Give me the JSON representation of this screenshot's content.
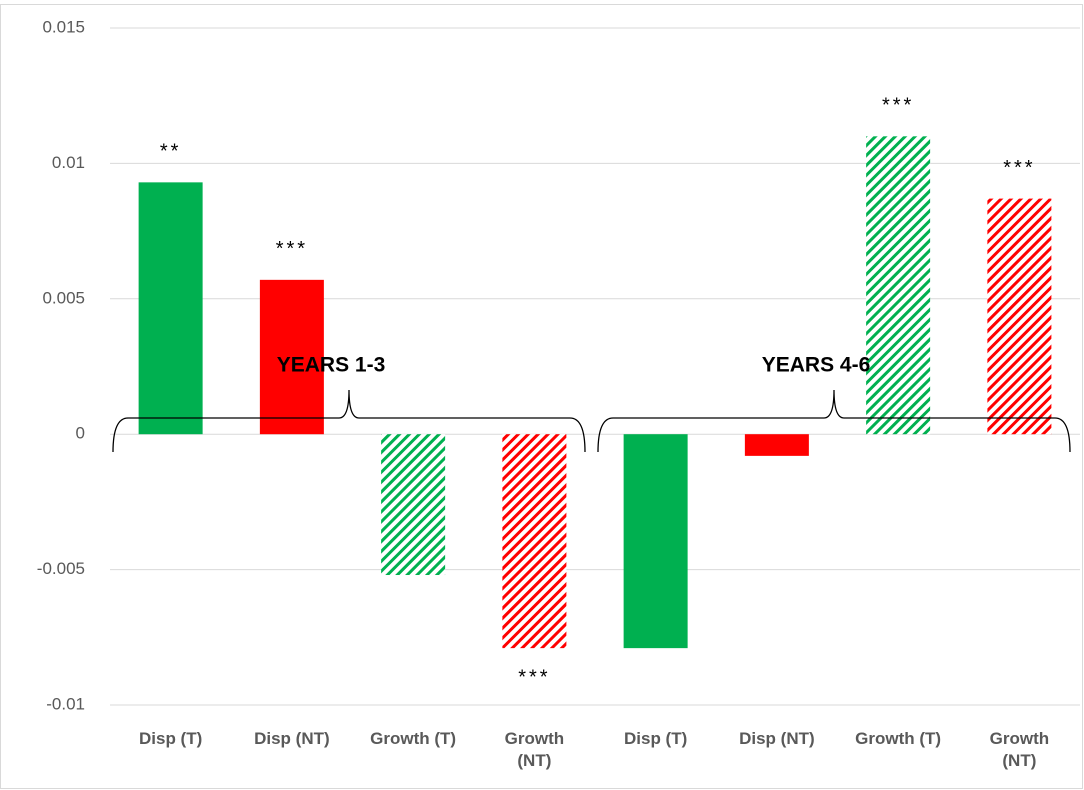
{
  "chart_data": {
    "type": "bar",
    "categories": [
      "Disp (T)",
      "Disp (NT)",
      "Growth (T)",
      "Growth (NT)",
      "Disp (T)",
      "Disp (NT)",
      "Growth (T)",
      "Growth (NT)"
    ],
    "values": [
      0.0093,
      0.0057,
      -0.0052,
      -0.0079,
      -0.0079,
      -0.0008,
      0.011,
      0.0087
    ],
    "colors": [
      "#00b050",
      "#ff0000",
      "#00b050",
      "#ff0000",
      "#00b050",
      "#ff0000",
      "#00b050",
      "#ff0000"
    ],
    "hatched": [
      false,
      false,
      true,
      true,
      false,
      false,
      true,
      true
    ],
    "significance": [
      "**",
      "***",
      null,
      "***",
      null,
      null,
      "***",
      "***"
    ],
    "groups": [
      "YEARS 1-3",
      "YEARS 4-6"
    ],
    "ylim": [
      -0.01,
      0.015
    ],
    "yticks": [
      0.015,
      0.01,
      0.005,
      0,
      -0.005,
      -0.01
    ],
    "grid": true
  }
}
